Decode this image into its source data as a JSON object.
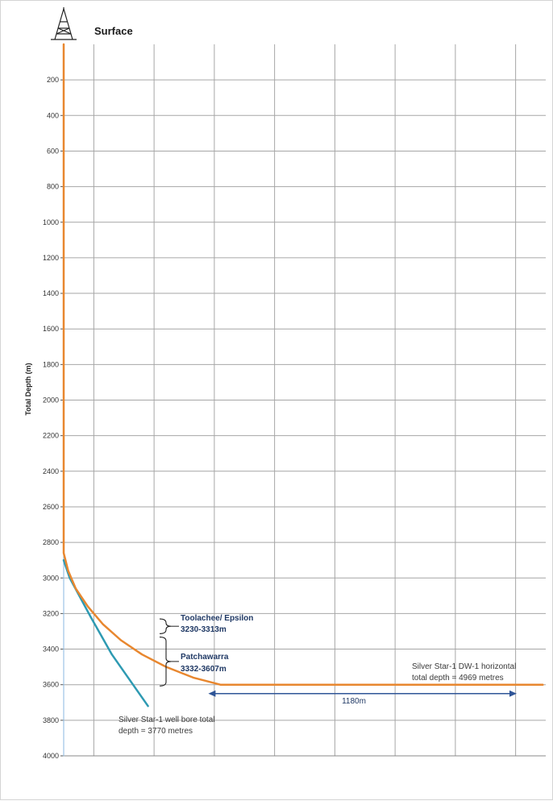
{
  "chart_data": {
    "type": "line",
    "title": "",
    "xlabel": "",
    "ylabel": "Total Depth (m)",
    "surface_label": "Surface",
    "ylim": [
      0,
      4000
    ],
    "yticks": [
      200,
      400,
      600,
      800,
      1000,
      1200,
      1400,
      1600,
      1800,
      2000,
      2200,
      2400,
      2600,
      2800,
      3000,
      3200,
      3400,
      3600,
      3800,
      4000
    ],
    "xlim": [
      0,
      1600
    ],
    "xgrid": [
      0,
      100,
      300,
      500,
      700,
      900,
      1100,
      1300,
      1500
    ],
    "grid": true,
    "series": [
      {
        "color": "#e8872f",
        "x": [
          0,
          0,
          15,
          40,
          80,
          130,
          190,
          260,
          340,
          430,
          520,
          1590
        ],
        "y": [
          0,
          2860,
          2960,
          3060,
          3160,
          3260,
          3350,
          3430,
          3500,
          3560,
          3600,
          3600
        ]
      },
      {
        "color": "#2e9ab2",
        "x": [
          0,
          20,
          90,
          160,
          280
        ],
        "y": [
          2900,
          3000,
          3220,
          3430,
          3720
        ]
      },
      {
        "color": "#9dc3e6",
        "x": [
          0,
          0
        ],
        "y": [
          0,
          4000
        ]
      }
    ],
    "annotations": {
      "toolachee": {
        "name": "Toolachee/ Epsilon",
        "range": "3230-3313m"
      },
      "patchawarra": {
        "name": "Patchawarra",
        "range": "3332-3607m"
      },
      "horizontal_td": {
        "line1": "Silver Star-1 DW-1 horizontal",
        "line2": "total depth = 4969 metres"
      },
      "wellbore_td": {
        "line1": "Silver Star-1 well bore total",
        "line2": "depth = 3770 metres"
      },
      "span": {
        "label": "1180m",
        "from_x": 480,
        "to_x": 1600,
        "y": 3650
      }
    },
    "brackets": [
      {
        "from": 3230,
        "to": 3313
      },
      {
        "from": 3332,
        "to": 3607
      }
    ]
  },
  "colors": {
    "grid": "#a6a6a6",
    "annotation_blue": "#1f3864",
    "arrow": "#2f5597"
  },
  "icons": {
    "rig": "drilling-rig-icon"
  }
}
